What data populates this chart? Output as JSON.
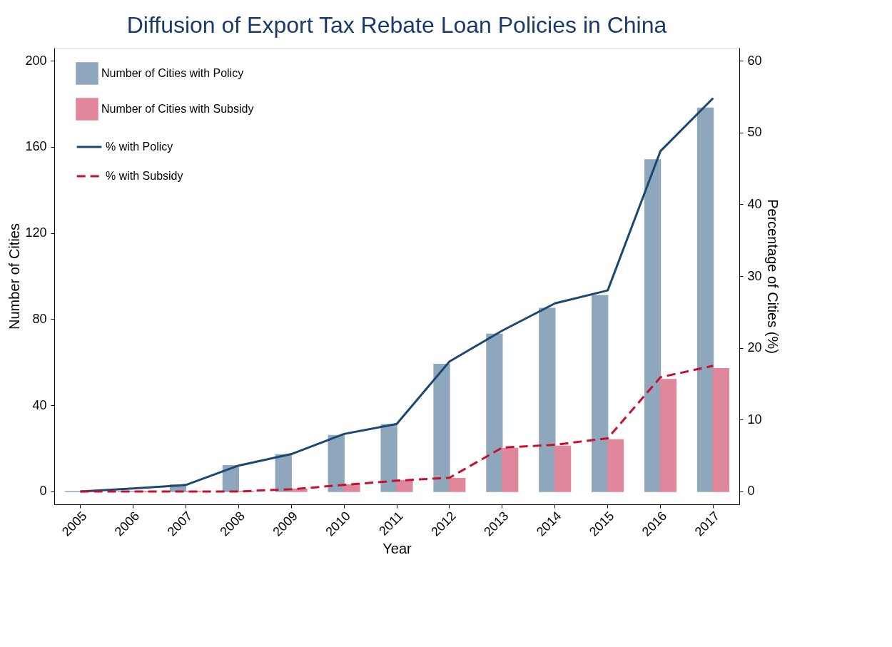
{
  "chart_data": {
    "type": "bar",
    "title": "Diffusion of Export Tax Rebate Loan Policies in China",
    "xlabel": "Year",
    "ylabel": "Number of Cities",
    "y2label": "Percentage of Cities (%)",
    "categories": [
      "2005",
      "2006",
      "2007",
      "2008",
      "2009",
      "2010",
      "2011",
      "2012",
      "2013",
      "2014",
      "2015",
      "2016",
      "2017"
    ],
    "series": [
      {
        "name": "Number of Cities with Policy",
        "color": "#8fa7bc",
        "values": [
          0,
          0,
          3,
          12,
          17,
          26,
          31,
          59,
          73,
          85,
          91,
          154,
          178
        ]
      },
      {
        "name": "Number of Cities with Subsidy",
        "color": "#e0879b",
        "values": [
          0,
          0,
          0,
          0,
          1,
          3,
          5,
          6,
          20,
          21,
          24,
          52,
          57
        ]
      },
      {
        "name": "% with Policy",
        "type": "line",
        "axis": "y2",
        "color": "#1a4873",
        "line_style": "solid",
        "values": [
          0,
          0.4,
          0.9,
          3.6,
          5.2,
          8.0,
          9.4,
          18.1,
          22.4,
          26.2,
          28.0,
          47.4,
          54.8
        ]
      },
      {
        "name": "% with Subsidy",
        "type": "line",
        "axis": "y2",
        "color": "#c8102e",
        "line_style": "dashed",
        "values": [
          0,
          0,
          0,
          0,
          0.3,
          0.9,
          1.5,
          1.9,
          6.1,
          6.5,
          7.4,
          15.9,
          17.5
        ]
      }
    ],
    "ylim": [
      -6,
      206
    ],
    "yticks": [
      0,
      40,
      80,
      120,
      160,
      200
    ],
    "y2lim": [
      -1.8,
      61.8
    ],
    "y2ticks": [
      0,
      10,
      20,
      30,
      40,
      50,
      60
    ],
    "grid": false,
    "legend": "top left",
    "marker": "none"
  }
}
